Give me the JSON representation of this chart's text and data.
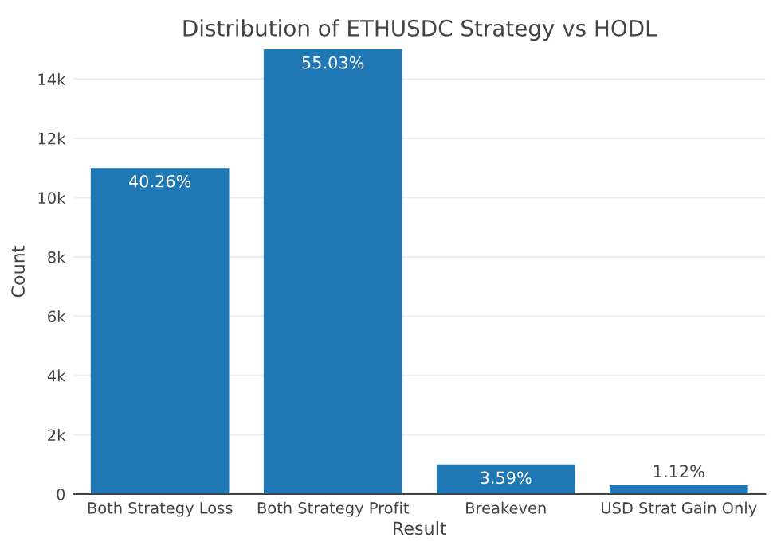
{
  "chart_data": {
    "type": "bar",
    "title": "Distribution of ETHUSDC Strategy vs HODL",
    "xlabel": "Result",
    "ylabel": "Count",
    "categories": [
      "Both Strategy Loss",
      "Both Strategy Profit",
      "Breakeven",
      "USD Strat Gain Only"
    ],
    "values": [
      11000,
      15000,
      1000,
      300
    ],
    "color": "#1f77b4",
    "annotations": [
      {
        "text": "40.26%",
        "x": "Both Strategy Loss",
        "y": 11000
      },
      {
        "text": "55.03%",
        "x": "Both Strategy Profit",
        "y": 15000
      },
      {
        "text": "3.59%",
        "x": "Breakeven",
        "y": 1000
      },
      {
        "text": "1.12%",
        "x": "USD Strat Gain Only",
        "y": 300
      }
    ],
    "ylim": [
      0,
      15000
    ],
    "yticks": [
      0,
      {
        "value": 2000,
        "label": "2k"
      },
      {
        "value": 4000,
        "label": "4k"
      },
      {
        "value": 6000,
        "label": "6k"
      },
      {
        "value": 8000,
        "label": "8k"
      },
      {
        "value": 10000,
        "label": "10k"
      },
      {
        "value": 12000,
        "label": "12k"
      },
      {
        "value": 14000,
        "label": "14k"
      }
    ],
    "grid": "y"
  }
}
